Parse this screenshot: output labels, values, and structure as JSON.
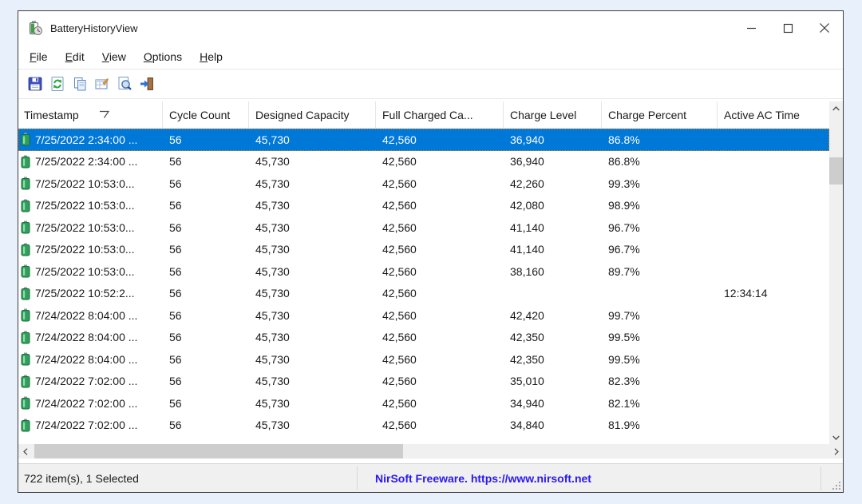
{
  "window": {
    "title": "BatteryHistoryView",
    "icons": {
      "app": "battery-with-clock",
      "minimize": "thin-minus",
      "maximize": "outline-square",
      "close": "thin-x"
    }
  },
  "menu": {
    "items": [
      {
        "label": "File"
      },
      {
        "label": "Edit"
      },
      {
        "label": "View"
      },
      {
        "label": "Options"
      },
      {
        "label": "Help"
      }
    ]
  },
  "toolbar": {
    "icons": [
      {
        "name": "save-icon"
      },
      {
        "name": "refresh-icon"
      },
      {
        "name": "copy-icon"
      },
      {
        "name": "properties-icon"
      },
      {
        "name": "find-icon"
      },
      {
        "name": "exit-icon"
      }
    ]
  },
  "table": {
    "columns": [
      {
        "label": "Timestamp",
        "sorted": "desc"
      },
      {
        "label": "Cycle Count"
      },
      {
        "label": "Designed Capacity"
      },
      {
        "label": "Full Charged Ca..."
      },
      {
        "label": "Charge Level"
      },
      {
        "label": "Charge Percent"
      },
      {
        "label": "Active AC Time"
      }
    ],
    "row_icon": "battery-icon",
    "rows": [
      {
        "selected": true,
        "cells": [
          "7/25/2022 2:34:00 ...",
          "56",
          "45,730",
          "42,560",
          "36,940",
          "86.8%",
          ""
        ]
      },
      {
        "selected": false,
        "cells": [
          "7/25/2022 2:34:00 ...",
          "56",
          "45,730",
          "42,560",
          "36,940",
          "86.8%",
          ""
        ]
      },
      {
        "selected": false,
        "cells": [
          "7/25/2022 10:53:0...",
          "56",
          "45,730",
          "42,560",
          "42,260",
          "99.3%",
          ""
        ]
      },
      {
        "selected": false,
        "cells": [
          "7/25/2022 10:53:0...",
          "56",
          "45,730",
          "42,560",
          "42,080",
          "98.9%",
          ""
        ]
      },
      {
        "selected": false,
        "cells": [
          "7/25/2022 10:53:0...",
          "56",
          "45,730",
          "42,560",
          "41,140",
          "96.7%",
          ""
        ]
      },
      {
        "selected": false,
        "cells": [
          "7/25/2022 10:53:0...",
          "56",
          "45,730",
          "42,560",
          "41,140",
          "96.7%",
          ""
        ]
      },
      {
        "selected": false,
        "cells": [
          "7/25/2022 10:53:0...",
          "56",
          "45,730",
          "42,560",
          "38,160",
          "89.7%",
          ""
        ]
      },
      {
        "selected": false,
        "cells": [
          "7/25/2022 10:52:2...",
          "56",
          "45,730",
          "42,560",
          "",
          "",
          "12:34:14"
        ]
      },
      {
        "selected": false,
        "cells": [
          "7/24/2022 8:04:00 ...",
          "56",
          "45,730",
          "42,560",
          "42,420",
          "99.7%",
          ""
        ]
      },
      {
        "selected": false,
        "cells": [
          "7/24/2022 8:04:00 ...",
          "56",
          "45,730",
          "42,560",
          "42,350",
          "99.5%",
          ""
        ]
      },
      {
        "selected": false,
        "cells": [
          "7/24/2022 8:04:00 ...",
          "56",
          "45,730",
          "42,560",
          "42,350",
          "99.5%",
          ""
        ]
      },
      {
        "selected": false,
        "cells": [
          "7/24/2022 7:02:00 ...",
          "56",
          "45,730",
          "42,560",
          "35,010",
          "82.3%",
          ""
        ]
      },
      {
        "selected": false,
        "cells": [
          "7/24/2022 7:02:00 ...",
          "56",
          "45,730",
          "42,560",
          "34,940",
          "82.1%",
          ""
        ]
      },
      {
        "selected": false,
        "cells": [
          "7/24/2022 7:02:00 ...",
          "56",
          "45,730",
          "42,560",
          "34,840",
          "81.9%",
          ""
        ]
      }
    ]
  },
  "status_bar": {
    "items_text": "722 item(s), 1 Selected",
    "link_text": "NirSoft Freeware. https://www.nirsoft.net"
  },
  "colors": {
    "selection": "#0078d7",
    "selection_focus_dots": "#c9862c",
    "link_blue": "#2a18ef",
    "desktop_bg": "#e8f1fb",
    "scrollbar_track": "#f0f0f0",
    "scrollbar_thumb": "#cdcdcd"
  }
}
